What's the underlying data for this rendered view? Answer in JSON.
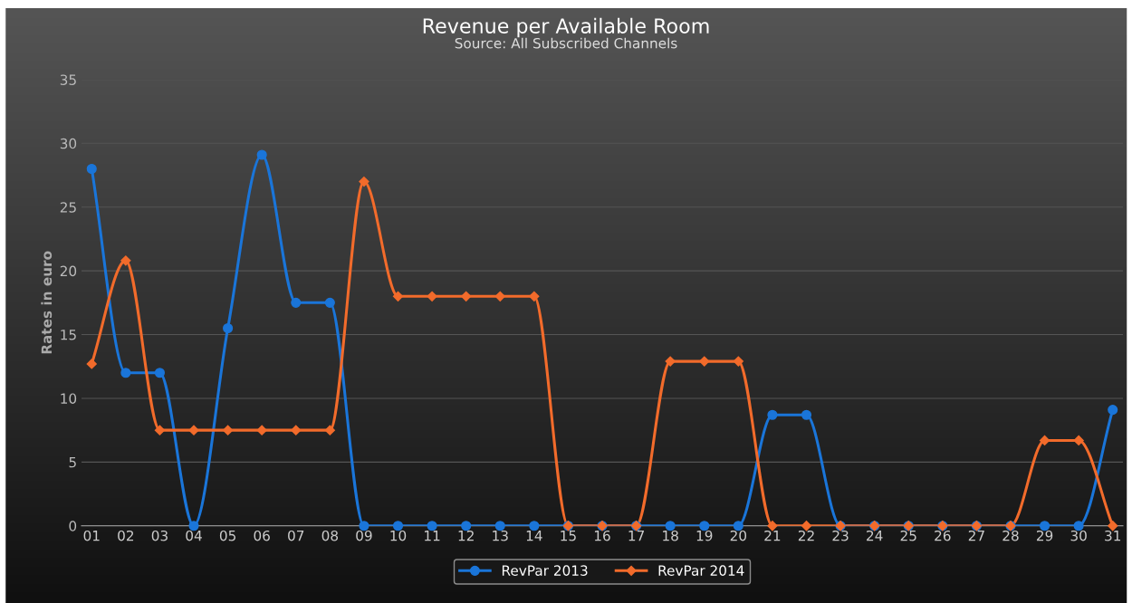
{
  "chart_data": {
    "type": "line",
    "title": "Revenue per Available Room",
    "subtitle": "Source: All Subscribed Channels",
    "ylabel": "Rates in euro",
    "categories": [
      "01",
      "02",
      "03",
      "04",
      "05",
      "06",
      "07",
      "08",
      "09",
      "10",
      "11",
      "12",
      "13",
      "14",
      "15",
      "16",
      "17",
      "18",
      "19",
      "20",
      "21",
      "22",
      "23",
      "24",
      "25",
      "26",
      "27",
      "28",
      "29",
      "30",
      "31"
    ],
    "series": [
      {
        "name": "RevPar 2013",
        "color": "#1a75d9",
        "marker": "circle",
        "values": [
          28,
          12,
          12,
          0,
          15.5,
          29.1,
          17.5,
          17.5,
          0,
          0,
          0,
          0,
          0,
          0,
          0,
          0,
          0,
          0,
          0,
          0,
          8.7,
          8.7,
          0,
          0,
          0,
          0,
          0,
          0,
          0,
          0,
          9.1
        ]
      },
      {
        "name": "RevPar 2014",
        "color": "#f26b2b",
        "marker": "diamond",
        "values": [
          12.7,
          20.8,
          7.5,
          7.5,
          7.5,
          7.5,
          7.5,
          7.5,
          27,
          18,
          18,
          18,
          18,
          18,
          0,
          0,
          0,
          12.9,
          12.9,
          12.9,
          0,
          0,
          0,
          0,
          0,
          0,
          0,
          0,
          6.7,
          6.7,
          0
        ]
      }
    ],
    "ylim": [
      0,
      35
    ],
    "yticks": [
      0,
      5,
      10,
      15,
      20,
      25,
      30,
      35
    ],
    "grid": "y",
    "legend": "bottom"
  }
}
